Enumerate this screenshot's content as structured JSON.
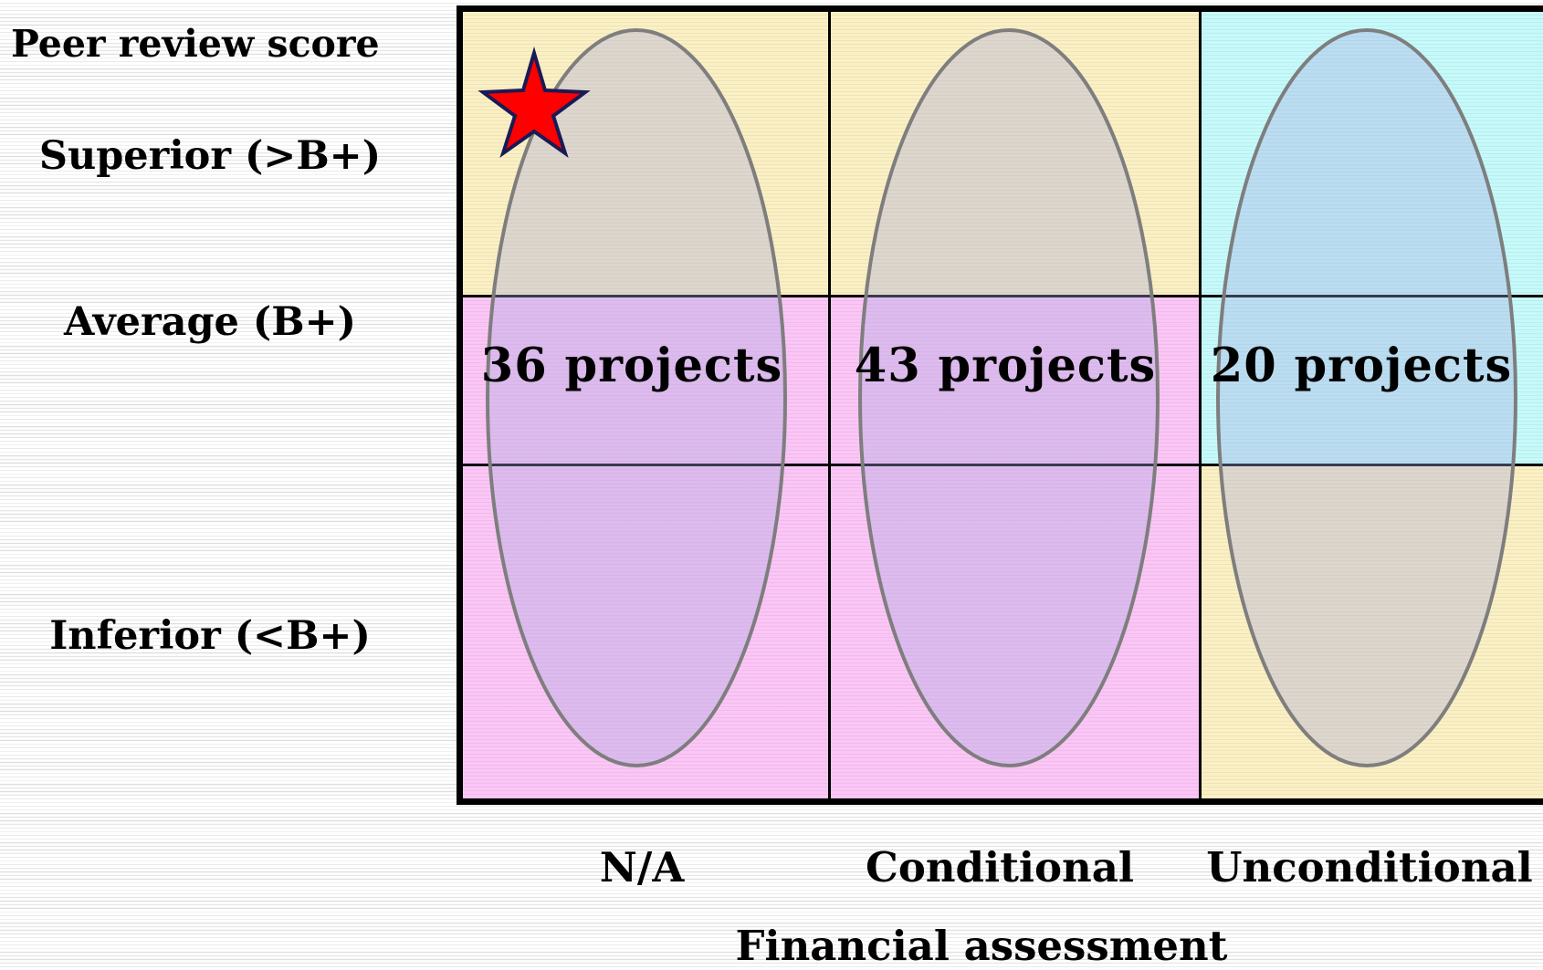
{
  "diagram": {
    "y_axis_title": "Peer review score",
    "x_axis_title": "Financial assessment",
    "rows": [
      {
        "id": "superior",
        "label": "Superior (>B+)"
      },
      {
        "id": "average",
        "label": "Average (B+)"
      },
      {
        "id": "inferior",
        "label": "Inferior (<B+)"
      }
    ],
    "columns": [
      {
        "id": "na",
        "label": "N/A",
        "count": "36 projects"
      },
      {
        "id": "conditional",
        "label": "Conditional",
        "count": "43 projects"
      },
      {
        "id": "unconditional",
        "label": "Unconditional",
        "count": "20 projects"
      }
    ],
    "cell_colors": {
      "yellow": "#fbf0c4",
      "pink": "#fbc6f6",
      "cyan": "#c6fafa"
    },
    "cell_fill": [
      [
        "yellow",
        "yellow",
        "cyan"
      ],
      [
        "pink",
        "pink",
        "cyan"
      ],
      [
        "pink",
        "pink",
        "yellow"
      ]
    ],
    "ellipse_fill": "#a6a6e0",
    "ellipse_stroke": "#7e7e7e",
    "marker": {
      "shape": "star",
      "fill": "#ff0000",
      "stroke": "#1a1a55",
      "column": "na",
      "row": "superior"
    }
  }
}
